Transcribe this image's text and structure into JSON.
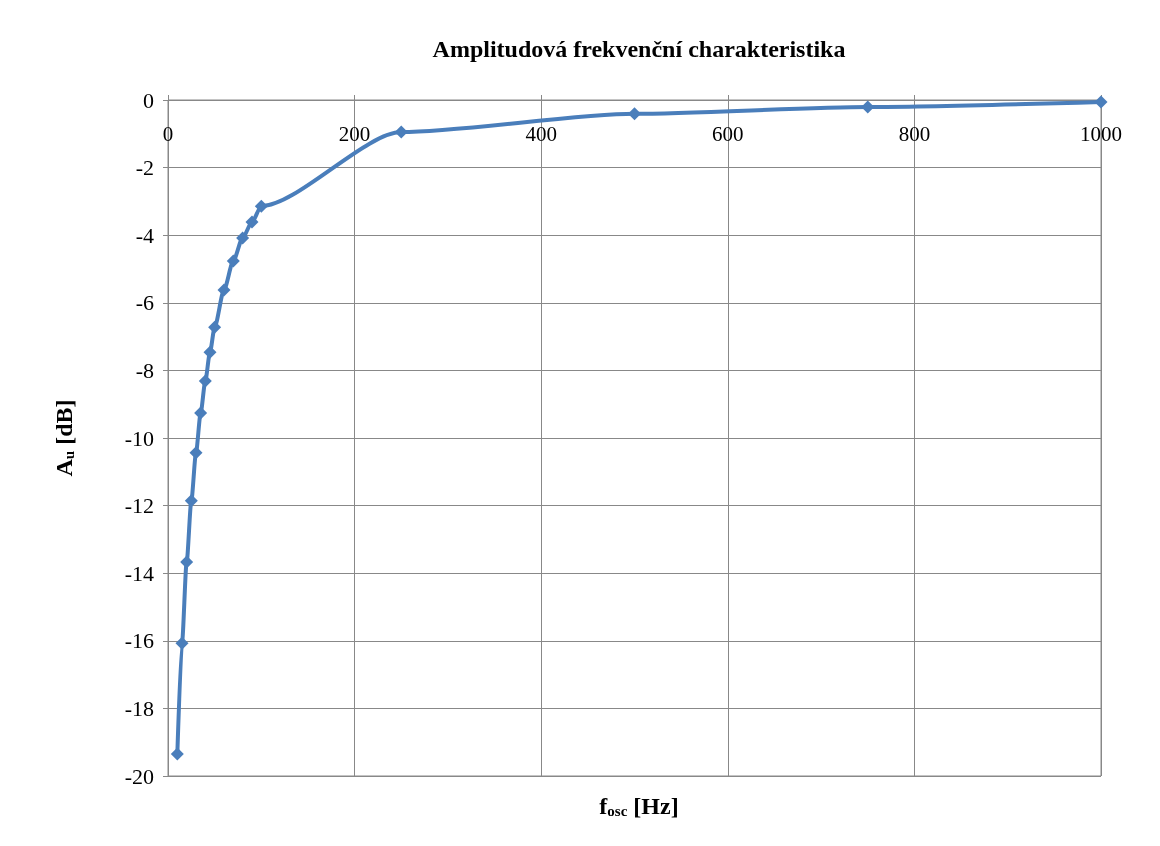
{
  "chart_data": {
    "type": "line",
    "title": "Amplitudová frekvenční charakteristika",
    "xlabel": "f$_{osc}$ [Hz]",
    "ylabel": "A$_{u}$ [dB]",
    "series": [
      {
        "color": "#4a7ebb",
        "x": [
          10,
          15,
          20,
          25,
          30,
          35,
          40,
          45,
          50,
          60,
          70,
          80,
          90,
          100,
          250,
          500,
          750,
          1000
        ],
        "values": [
          -19.35,
          -16.07,
          -13.67,
          -11.86,
          -10.44,
          -9.26,
          -8.31,
          -7.46,
          -6.72,
          -5.62,
          -4.76,
          -4.08,
          -3.61,
          -3.14,
          -0.95,
          -0.41,
          -0.21,
          -0.06
        ]
      }
    ],
    "xlim": [
      0,
      1000
    ],
    "xticks": [
      0,
      200,
      400,
      600,
      800,
      1000
    ],
    "ylim": [
      -20,
      0
    ],
    "yticks": [
      -20,
      -18,
      -16,
      -14,
      -12,
      -10,
      -8,
      -6,
      -4,
      -2,
      0
    ],
    "grid": true,
    "marker": "diamond",
    "line_style": "solid"
  }
}
